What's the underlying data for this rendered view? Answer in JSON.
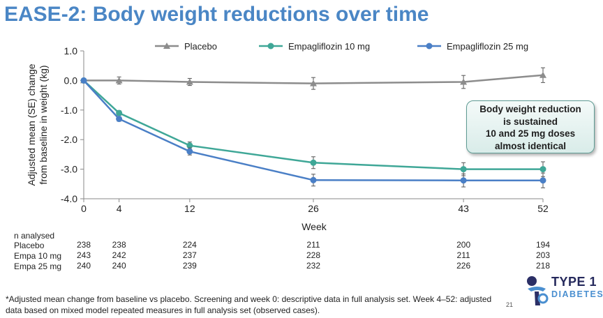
{
  "title": "EASE-2: Body weight reductions over time",
  "chart_data": {
    "type": "line",
    "x": [
      0,
      4,
      12,
      26,
      43,
      52
    ],
    "xlabel": "Week",
    "ylabel_line1": "Adjusted mean (SE) change",
    "ylabel_line2": "from  baseline in weight (kg)",
    "ylim": [
      -4.0,
      1.0
    ],
    "yticks": [
      "1.0",
      "0.0",
      "-1.0",
      "-2.0",
      "-3.0",
      "-4.0"
    ],
    "ytick_values": [
      1,
      0,
      -1,
      -2,
      -3,
      -4
    ],
    "legend_position": "top",
    "series": [
      {
        "name": "Placebo",
        "color": "#8c8c8c",
        "marker": "triangle",
        "values": [
          0.0,
          0.0,
          -0.05,
          -0.1,
          -0.05,
          0.18
        ],
        "error": [
          0.0,
          0.12,
          0.12,
          0.2,
          0.22,
          0.25
        ]
      },
      {
        "name": "Empagliflozin 10 mg",
        "color": "#3fa797",
        "marker": "circle",
        "values": [
          0.0,
          -1.1,
          -2.2,
          -2.78,
          -3.0,
          -3.0
        ],
        "error": [
          0.0,
          0.08,
          0.12,
          0.2,
          0.22,
          0.25
        ]
      },
      {
        "name": "Empagliflozin 25 mg",
        "color": "#4a7fc6",
        "marker": "circle",
        "values": [
          0.0,
          -1.3,
          -2.4,
          -3.37,
          -3.38,
          -3.38
        ],
        "error": [
          0.0,
          0.08,
          0.12,
          0.2,
          0.22,
          0.25
        ]
      }
    ]
  },
  "callout": {
    "line1": "Body weight reduction",
    "line2": "is sustained",
    "line3": "10 and 25 mg doses",
    "line4": "almost identical"
  },
  "n_table": {
    "header": "n analysed",
    "rows": [
      {
        "label": "Placebo",
        "values": [
          "238",
          "238",
          "224",
          "211",
          "200",
          "194"
        ]
      },
      {
        "label": "Empa 10 mg",
        "values": [
          "243",
          "242",
          "237",
          "228",
          "211",
          "203"
        ]
      },
      {
        "label": "Empa 25 mg",
        "values": [
          "240",
          "240",
          "239",
          "232",
          "226",
          "218"
        ]
      }
    ]
  },
  "footnote": "*Adjusted mean change from baseline vs placebo. Screening and week 0: descriptive data in full analysis set. Week 4–52: adjusted data based on mixed model repeated measures in full analysis set (observed cases).",
  "page_number": "21",
  "logo": {
    "line1": "TYPE 1",
    "line2": "DIABETES"
  }
}
